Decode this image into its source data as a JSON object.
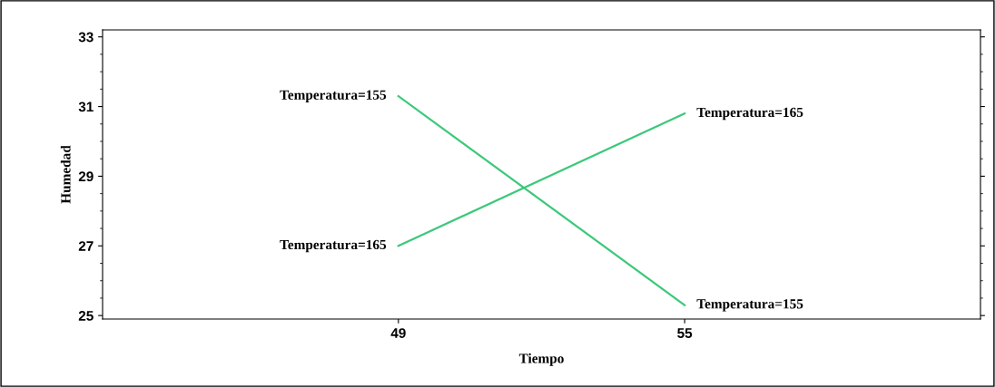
{
  "chart_data": {
    "type": "line",
    "xlabel": "Tiempo",
    "ylabel": "Humedad",
    "x": [
      49,
      55
    ],
    "series": [
      {
        "name": "Temperatura=155",
        "color": "#3cc87a",
        "values": [
          31.3,
          25.3
        ]
      },
      {
        "name": "Temperatura=165",
        "color": "#3cc87a",
        "values": [
          27.0,
          30.8
        ]
      }
    ],
    "xlim": [
      42.8,
      61.2
    ],
    "xticks": [
      49,
      55
    ],
    "ylim": [
      24.9,
      33.2
    ],
    "yticks": [
      25,
      27,
      29,
      31,
      33
    ],
    "grid": false,
    "legend": false,
    "marker": "none",
    "line_style": "solid"
  }
}
